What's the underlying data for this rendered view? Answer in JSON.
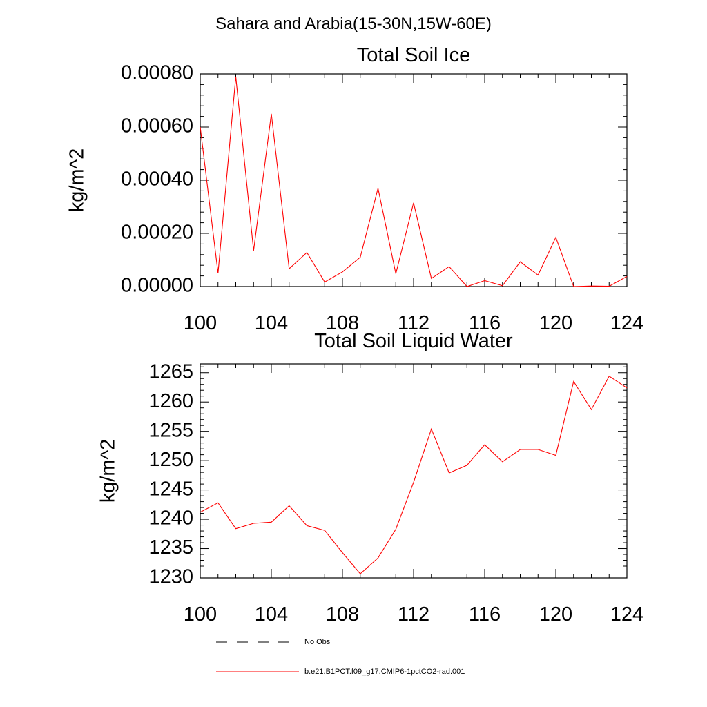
{
  "figure": {
    "title": "Sahara and Arabia(15-30N,15W-60E)"
  },
  "legend": {
    "items": [
      {
        "label": "No Obs",
        "style": "dashed",
        "color": "#000000"
      },
      {
        "label": "b.e21.B1PCT.f09_g17.CMIP6-1pctCO2-rad.001",
        "style": "solid",
        "color": "#ff0000"
      }
    ]
  },
  "chart_data": [
    {
      "type": "line",
      "title": "Total Soil Ice",
      "xlabel": "",
      "ylabel": "kg/m^2",
      "xlim": [
        100,
        124
      ],
      "ylim": [
        0,
        0.0008
      ],
      "x_ticks": [
        "100",
        "104",
        "108",
        "112",
        "116",
        "120",
        "124"
      ],
      "y_ticks": [
        "0.00000",
        "0.00020",
        "0.00040",
        "0.00060",
        "0.00080"
      ],
      "series": [
        {
          "color": "#ff0000",
          "x": [
            100,
            101,
            102,
            103,
            104,
            105,
            106,
            107,
            108,
            109,
            110,
            111,
            112,
            113,
            114,
            115,
            116,
            117,
            118,
            119,
            120,
            121,
            122,
            123,
            124
          ],
          "values": [
            0.0006,
            5e-05,
            0.00079,
            0.000135,
            0.00065,
            6.7e-05,
            0.000128,
            1.7e-05,
            5.5e-05,
            0.00011,
            0.00037,
            4.8e-05,
            0.000315,
            3e-05,
            7.5e-05,
            0.0,
            2.2e-05,
            3e-06,
            9.3e-05,
            4.3e-05,
            0.000185,
            0.0,
            2e-06,
            1e-06,
            3.8e-05
          ]
        }
      ]
    },
    {
      "type": "line",
      "title": "Total Soil Liquid Water",
      "xlabel": "",
      "ylabel": "kg/m^2",
      "xlim": [
        100,
        124
      ],
      "ylim": [
        1230,
        1266.5
      ],
      "x_ticks": [
        "100",
        "104",
        "108",
        "112",
        "116",
        "120",
        "124"
      ],
      "y_ticks": [
        "1230",
        "1235",
        "1240",
        "1245",
        "1250",
        "1255",
        "1260",
        "1265"
      ],
      "series": [
        {
          "color": "#ff0000",
          "x": [
            100,
            101,
            102,
            103,
            104,
            105,
            106,
            107,
            108,
            109,
            110,
            111,
            112,
            113,
            114,
            115,
            116,
            117,
            118,
            119,
            120,
            121,
            122,
            123,
            124
          ],
          "values": [
            1241.2,
            1242.8,
            1238.4,
            1239.3,
            1239.5,
            1242.3,
            1238.9,
            1238.1,
            1234.3,
            1230.7,
            1233.4,
            1238.3,
            1246.3,
            1255.4,
            1247.9,
            1249.2,
            1252.7,
            1249.8,
            1251.9,
            1251.9,
            1250.9,
            1263.5,
            1258.7,
            1264.4,
            1262.4
          ]
        }
      ]
    }
  ]
}
